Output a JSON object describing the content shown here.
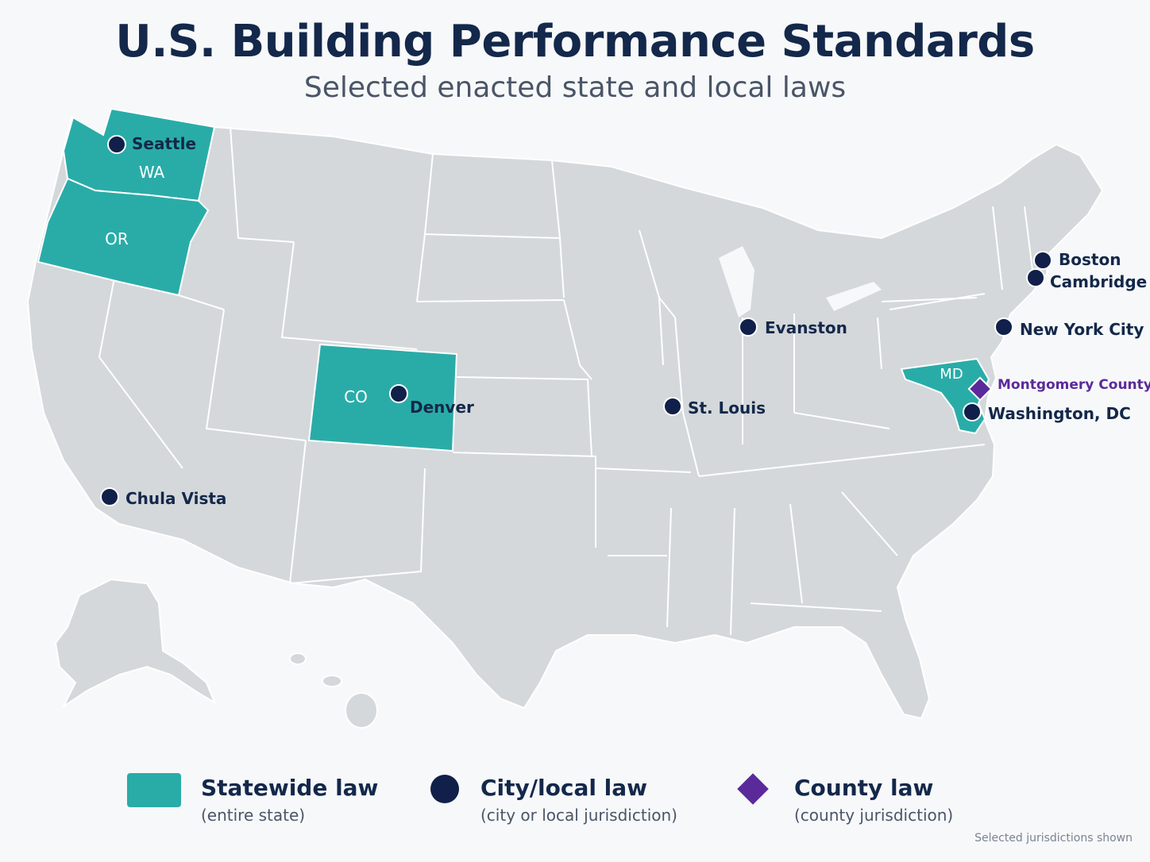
{
  "header": {
    "title": "U.S. Building Performance Standards",
    "subtitle": "Selected enacted state and local laws"
  },
  "colors": {
    "statewide": "#29aca8",
    "city": "#10204a",
    "county": "#5b2a9a",
    "land": "#d4d8db",
    "border": "#ffffff"
  },
  "statewide_states": [
    {
      "abbr": "WA"
    },
    {
      "abbr": "OR"
    },
    {
      "abbr": "CO"
    },
    {
      "abbr": "MD"
    }
  ],
  "cities": [
    {
      "name": "Seattle"
    },
    {
      "name": "Denver"
    },
    {
      "name": "Chula Vista"
    },
    {
      "name": "St. Louis"
    },
    {
      "name": "Evanston"
    },
    {
      "name": "Boston"
    },
    {
      "name": "Cambridge"
    },
    {
      "name": "New York City"
    },
    {
      "name": "Washington, DC"
    }
  ],
  "counties": [
    {
      "name": "Montgomery County"
    }
  ],
  "legend": {
    "statewide": {
      "label": "Statewide law",
      "desc": "(entire state)"
    },
    "city": {
      "label": "City/local law",
      "desc": "(city or local jurisdiction)"
    },
    "county": {
      "label": "County law",
      "desc": "(county jurisdiction)"
    }
  },
  "footnote": "Selected jurisdictions shown"
}
